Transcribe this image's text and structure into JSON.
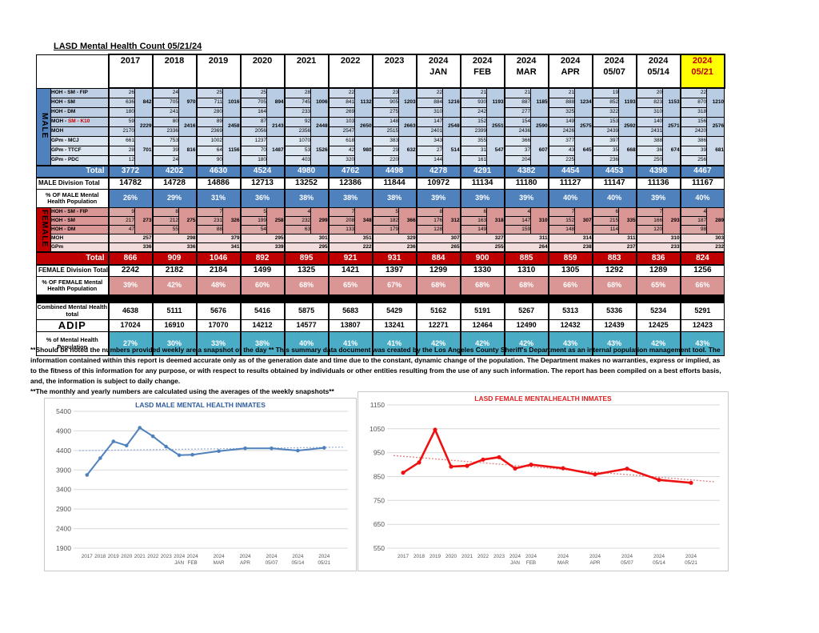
{
  "title": "LASD Mental Health Count 05/21/24",
  "footnotes": [
    "**Should be noted the numbers provided weekly are a snapshot of the day ** This summary data document was created by the Los Angeles County Sheriff's Department as an internal population management tool.  The information contained within this report is deemed accurate only as of the generation date and time due to the constant, dynamic change of the population.  The Department makes no warranties, express or implied, as to the fitness of this information for any purpose, or with respect to results obtained by individuals or other entities resulting from the use of any such information.  The report has been compiled on a best efforts basis, and, the information is subject to daily change.",
    "**The monthly and yearly numbers are calculated using the averages of the weekly snapshots**"
  ],
  "colors": {
    "male_accent": "#4f81bd",
    "female_accent": "#c00000",
    "teal_accent": "#4bacc6",
    "highlight_header_bg": "#ffff00",
    "highlight_header_text": "#c00000"
  },
  "table": {
    "columns": [
      "2017",
      "2018",
      "2019",
      "2020",
      "2021",
      "2022",
      "2023",
      "2024|JAN",
      "2024|FEB",
      "2024|MAR",
      "2024|APR",
      "2024|05/07",
      "2024|05/14",
      "2024|05/21"
    ],
    "male": {
      "sidebar": "MALE",
      "groups": [
        {
          "shade": "dark",
          "rows": [
            {
              "label": "HOH - SM - FIP",
              "lc": "red",
              "values": [
                26,
                24,
                25,
                25,
                28,
                22,
                23,
                22,
                21,
                21,
                21,
                19,
                20,
                22
              ]
            },
            {
              "label": "HOH - SM",
              "lc": "red",
              "values": [
                636,
                705,
                711,
                705,
                745,
                841,
                905,
                884,
                930,
                887,
                888,
                852,
                823,
                870
              ]
            },
            {
              "label": "HOH - DM",
              "lc": "red",
              "values": [
                180,
                241,
                280,
                164,
                233,
                269,
                275,
                310,
                242,
                277,
                325,
                322,
                310,
                318
              ]
            }
          ],
          "subtotals": [
            842,
            970,
            1016,
            894,
            1006,
            1132,
            1203,
            1216,
            1193,
            1185,
            1234,
            1193,
            1153,
            1210
          ]
        },
        {
          "shade": "dark",
          "rows": [
            {
              "label": "MOH - |SM - K10",
              "lc": "mix",
              "values": [
                59,
                80,
                89,
                87,
                92,
                103,
                148,
                147,
                152,
                154,
                149,
                153,
                140,
                156
              ]
            },
            {
              "label": "MOH",
              "lc": "blk",
              "values": [
                2170,
                2336,
                2369,
                2056,
                2356,
                2547,
                2515,
                2401,
                2399,
                2436,
                2426,
                2439,
                2431,
                2420
              ]
            }
          ],
          "subtotals": [
            2229,
            2416,
            2458,
            2143,
            2448,
            2650,
            2663,
            2548,
            2551,
            2590,
            2575,
            2592,
            2571,
            2576
          ]
        },
        {
          "shade": "light",
          "rows": [
            {
              "label": "GPm - MCJ",
              "lc": "blu",
              "values": [
                661,
                753,
                1002,
                1237,
                1070,
                618,
                383,
                343,
                355,
                366,
                377,
                397,
                388,
                386
              ]
            },
            {
              "label": "GPm - TTCF",
              "lc": "blu",
              "values": [
                28,
                39,
                64,
                70,
                53,
                42,
                29,
                27,
                31,
                37,
                43,
                35,
                36,
                39
              ]
            },
            {
              "label": "GPm - PDC",
              "lc": "blu",
              "values": [
                12,
                24,
                90,
                180,
                403,
                320,
                220,
                144,
                161,
                204,
                225,
                236,
                250,
                256
              ]
            }
          ],
          "subtotals": [
            701,
            816,
            1156,
            1487,
            1526,
            980,
            632,
            514,
            547,
            607,
            645,
            668,
            674,
            681
          ]
        }
      ],
      "total_label": "Total",
      "totals": [
        3772,
        4202,
        4630,
        4524,
        4980,
        4762,
        4498,
        4278,
        4291,
        4382,
        4454,
        4453,
        4398,
        4467
      ],
      "division_label": "MALE Division Total",
      "division_totals": [
        14782,
        14728,
        14886,
        12713,
        13252,
        12386,
        11844,
        10972,
        11134,
        11180,
        11127,
        11147,
        11136,
        11167
      ],
      "pct_label": "% OF MALE Mental Health Population",
      "pct": [
        "26%",
        "29%",
        "31%",
        "36%",
        "38%",
        "38%",
        "38%",
        "39%",
        "39%",
        "39%",
        "40%",
        "40%",
        "39%",
        "40%"
      ]
    },
    "female": {
      "sidebar": "FEMALE",
      "hoh_rows": [
        {
          "label": "HOH - SM - FIP",
          "lc": "redf",
          "values": [
            9,
            8,
            7,
            5,
            4,
            7,
            5,
            8,
            6,
            4,
            7,
            6,
            7,
            4
          ]
        },
        {
          "label": "HOH - SM",
          "lc": "redf",
          "values": [
            217,
            212,
            231,
            199,
            232,
            208,
            182,
            176,
            163,
            147,
            152,
            215,
            166,
            187
          ]
        },
        {
          "label": "HOH - DM",
          "lc": "redf",
          "values": [
            47,
            55,
            88,
            54,
            63,
            133,
            179,
            128,
            149,
            159,
            148,
            114,
            120,
            98
          ]
        }
      ],
      "hoh_subtotals": [
        273,
        275,
        326,
        258,
        299,
        348,
        366,
        312,
        318,
        310,
        307,
        335,
        293,
        289
      ],
      "moh_label": "MOH",
      "moh": [
        257,
        298,
        379,
        295,
        301,
        351,
        329,
        307,
        327,
        311,
        314,
        311,
        310,
        303
      ],
      "gp_label": "GPm",
      "gp": [
        336,
        336,
        341,
        339,
        295,
        222,
        236,
        265,
        255,
        264,
        238,
        237,
        233,
        232
      ],
      "total_label": "Total",
      "totals": [
        866,
        909,
        1046,
        892,
        895,
        921,
        931,
        884,
        900,
        885,
        859,
        883,
        836,
        824
      ],
      "division_label": "FEMALE Division Total",
      "division_totals": [
        2242,
        2182,
        2184,
        1499,
        1325,
        1421,
        1397,
        1299,
        1330,
        1310,
        1305,
        1292,
        1289,
        1256
      ],
      "pct_label": "% OF FEMALE Mental Health Population",
      "pct": [
        "39%",
        "42%",
        "48%",
        "60%",
        "68%",
        "65%",
        "67%",
        "68%",
        "68%",
        "68%",
        "66%",
        "68%",
        "65%",
        "66%"
      ]
    },
    "combined_label": "Combined Mental Health total",
    "combined": [
      4638,
      5111,
      5676,
      5416,
      5875,
      5683,
      5429,
      5162,
      5191,
      5267,
      5313,
      5336,
      5234,
      5291
    ],
    "adip_label": "ADIP",
    "adip": [
      17024,
      16910,
      17070,
      14212,
      14577,
      13807,
      13241,
      12271,
      12464,
      12490,
      12432,
      12439,
      12425,
      12423
    ],
    "pct_combined_label": "% of Mental Health Population",
    "pct_combined": [
      "27%",
      "30%",
      "33%",
      "38%",
      "40%",
      "41%",
      "41%",
      "42%",
      "42%",
      "42%",
      "43%",
      "43%",
      "42%",
      "43%"
    ]
  },
  "chart_data": [
    {
      "type": "line",
      "name": "male-inmates",
      "title": "LASD MALE MENTAL HEALTH INMATES",
      "title_color": "#2e5b9f",
      "color": "#4f81bd",
      "trend_color": "#9ab3d5",
      "line_width": 2,
      "marker_r": 2.3,
      "ylim": [
        1900,
        5400
      ],
      "ystep": 500,
      "grid": true,
      "legend": "none",
      "categories": [
        "2017",
        "2018",
        "2019",
        "2020",
        "2021",
        "2022",
        "2023",
        "2024 JAN",
        "2024 FEB",
        "2024 MAR",
        "2024 APR",
        "2024 05/07",
        "2024 05/14",
        "2024 05/21"
      ],
      "values": [
        3772,
        4202,
        4630,
        4524,
        4980,
        4762,
        4498,
        4278,
        4291,
        4382,
        4454,
        4453,
        4398,
        4467
      ],
      "x_positions": [
        0,
        1,
        2,
        3,
        4,
        5,
        6,
        7,
        8,
        10,
        12,
        14,
        16,
        18
      ],
      "trendline": {
        "start": 4395,
        "end": 4485
      },
      "xlabel": "",
      "ylabel": ""
    },
    {
      "type": "line",
      "name": "female-inmates",
      "title": "LASD FEMALE MENTALHEALTH INMATES",
      "title_color": "#e02020",
      "color": "#ee1111",
      "trend_color": "#e08080",
      "line_width": 2.6,
      "marker_r": 2.6,
      "ylim": [
        550,
        1150
      ],
      "ystep": 100,
      "grid": true,
      "legend": "none",
      "categories": [
        "2017",
        "2018",
        "2019",
        "2020",
        "2021",
        "2022",
        "2023",
        "2024 JAN",
        "2024 FEB",
        "2024 MAR",
        "2024 APR",
        "2024 05/07",
        "2024 05/14",
        "2024 05/21"
      ],
      "values": [
        866,
        909,
        1046,
        892,
        895,
        921,
        931,
        884,
        900,
        885,
        859,
        883,
        836,
        824
      ],
      "x_positions": [
        0,
        1,
        2,
        3,
        4,
        5,
        6,
        7,
        8,
        10,
        12,
        14,
        16,
        18
      ],
      "trendline": {
        "start": 938,
        "end": 828
      },
      "xlabel": "",
      "ylabel": ""
    }
  ]
}
